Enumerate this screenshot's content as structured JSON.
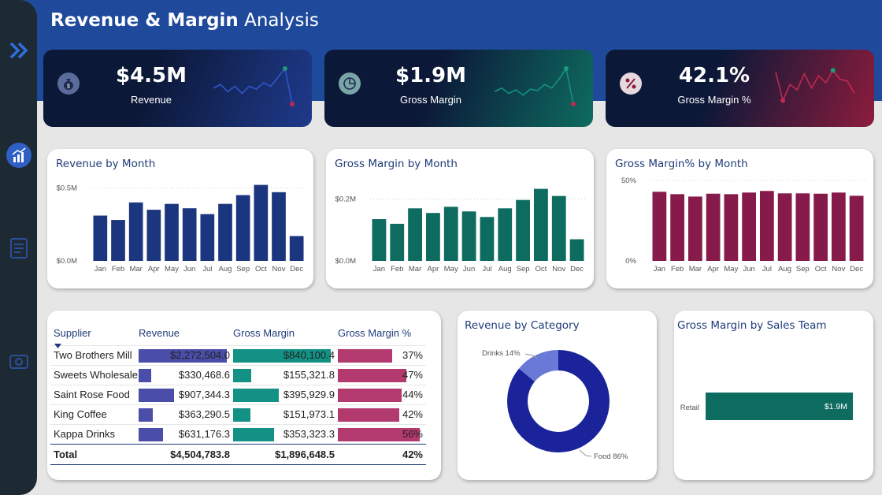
{
  "page": {
    "title_bold": "Revenue & Margin",
    "title_light": "Analysis"
  },
  "sidebar": {
    "icons": [
      "chevron-double-right-icon",
      "chart-icon",
      "report-icon",
      "settings-icon"
    ]
  },
  "kpis": [
    {
      "value": "$4.5M",
      "label": "Revenue",
      "icon": "money-bag-icon",
      "spark": [
        0.45,
        0.55,
        0.35,
        0.5,
        0.3,
        0.5,
        0.42,
        0.6,
        0.5,
        0.75,
        1.0,
        0.0
      ],
      "color_from": "#0c1838",
      "color_to": "#1f3a8c",
      "line": "#2e56c8"
    },
    {
      "value": "$1.9M",
      "label": "Gross Margin",
      "icon": "pie-chart-icon",
      "spark": [
        0.35,
        0.45,
        0.3,
        0.4,
        0.25,
        0.42,
        0.38,
        0.55,
        0.45,
        0.7,
        1.0,
        0.0
      ],
      "color_from": "#0c1838",
      "color_to": "#0e6c60",
      "line": "#16907c"
    },
    {
      "value": "42.1%",
      "label": "Gross Margin %",
      "icon": "percent-icon",
      "spark": [
        0.9,
        0.1,
        0.55,
        0.4,
        0.85,
        0.45,
        0.8,
        0.6,
        0.95,
        0.7,
        0.65,
        0.3
      ],
      "color_from": "#0c1838",
      "color_to": "#8c1c3c",
      "line": "#c0294e"
    }
  ],
  "charts": {
    "revenue": {
      "title": "Revenue by Month",
      "color": "#1b357e",
      "y_ticks": [
        "$0.5M",
        "$0.0M"
      ]
    },
    "margin": {
      "title": "Gross Margin by Month",
      "color": "#0e6b60",
      "y_ticks": [
        "$0.2M",
        "$0.0M"
      ]
    },
    "margin_pct": {
      "title": "Gross Margin% by Month",
      "color": "#861b4b",
      "y_ticks": [
        "50%",
        "0%"
      ]
    },
    "category": {
      "title": "Revenue by Category",
      "labels": [
        "Drinks 14%",
        "Food 86%"
      ]
    },
    "team": {
      "title": "Gross Margin by Sales Team",
      "category": "Retail",
      "value_label": "$1.9M"
    }
  },
  "chart_data": [
    {
      "type": "bar",
      "title": "Revenue by Month",
      "categories": [
        "Jan",
        "Feb",
        "Mar",
        "Apr",
        "May",
        "Jun",
        "Jul",
        "Aug",
        "Sep",
        "Oct",
        "Nov",
        "Dec"
      ],
      "values": [
        0.31,
        0.28,
        0.4,
        0.35,
        0.39,
        0.36,
        0.32,
        0.39,
        0.45,
        0.52,
        0.47,
        0.17
      ],
      "ylabel": "",
      "ylim": [
        0,
        0.55
      ],
      "y_ticks": [
        0,
        0.5
      ],
      "grid": true
    },
    {
      "type": "bar",
      "title": "Gross Margin by Month",
      "categories": [
        "Jan",
        "Feb",
        "Mar",
        "Apr",
        "May",
        "Jun",
        "Jul",
        "Aug",
        "Sep",
        "Oct",
        "Nov",
        "Dec"
      ],
      "values": [
        0.135,
        0.12,
        0.17,
        0.155,
        0.175,
        0.16,
        0.142,
        0.17,
        0.197,
        0.233,
        0.21,
        0.07
      ],
      "ylabel": "",
      "ylim": [
        0,
        0.26
      ],
      "y_ticks": [
        0,
        0.2
      ],
      "grid": true
    },
    {
      "type": "bar",
      "title": "Gross Margin% by Month",
      "categories": [
        "Jan",
        "Feb",
        "Mar",
        "Apr",
        "May",
        "Jun",
        "Jul",
        "Aug",
        "Sep",
        "Oct",
        "Nov",
        "Dec"
      ],
      "values": [
        43,
        41.5,
        40,
        41.8,
        41.5,
        42.5,
        43.5,
        42,
        42,
        41.8,
        42.5,
        40.5
      ],
      "ylabel": "",
      "ylim": [
        0,
        50
      ],
      "y_ticks": [
        0,
        50
      ],
      "grid": true
    },
    {
      "type": "pie",
      "title": "Revenue by Category",
      "categories": [
        "Drinks",
        "Food"
      ],
      "values": [
        14,
        86
      ],
      "colors": [
        "#6a79d6",
        "#1a239a"
      ]
    },
    {
      "type": "bar",
      "title": "Gross Margin by Sales Team",
      "categories": [
        "Retail"
      ],
      "values": [
        1.9
      ],
      "orientation": "horizontal",
      "color": "#0e6b60"
    }
  ],
  "table": {
    "headers": [
      "Supplier",
      "Revenue",
      "Gross Margin",
      "Gross Margin %"
    ],
    "rows": [
      {
        "supplier": "Two Brothers Mill",
        "revenue": "$2,272,504.0",
        "margin": "$840,100.4",
        "pct": "37%",
        "rev_frac": 1.0,
        "margin_frac": 1.0,
        "pct_frac": 0.66
      },
      {
        "supplier": "Sweets Wholesale",
        "revenue": "$330,468.6",
        "margin": "$155,321.8",
        "pct": "47%",
        "rev_frac": 0.145,
        "margin_frac": 0.185,
        "pct_frac": 0.84
      },
      {
        "supplier": "Saint Rose Food",
        "revenue": "$907,344.3",
        "margin": "$395,929.9",
        "pct": "44%",
        "rev_frac": 0.4,
        "margin_frac": 0.47,
        "pct_frac": 0.78
      },
      {
        "supplier": "King Coffee",
        "revenue": "$363,290.5",
        "margin": "$151,973.1",
        "pct": "42%",
        "rev_frac": 0.16,
        "margin_frac": 0.18,
        "pct_frac": 0.75
      },
      {
        "supplier": "Kappa Drinks",
        "revenue": "$631,176.3",
        "margin": "$353,323.3",
        "pct": "56%",
        "rev_frac": 0.28,
        "margin_frac": 0.42,
        "pct_frac": 1.0
      }
    ],
    "total": {
      "label": "Total",
      "revenue": "$4,504,783.8",
      "margin": "$1,896,648.5",
      "pct": "42%"
    },
    "colors": {
      "revenue": "#4a4ea8",
      "margin": "#129184",
      "pct": "#b23a6e"
    }
  }
}
